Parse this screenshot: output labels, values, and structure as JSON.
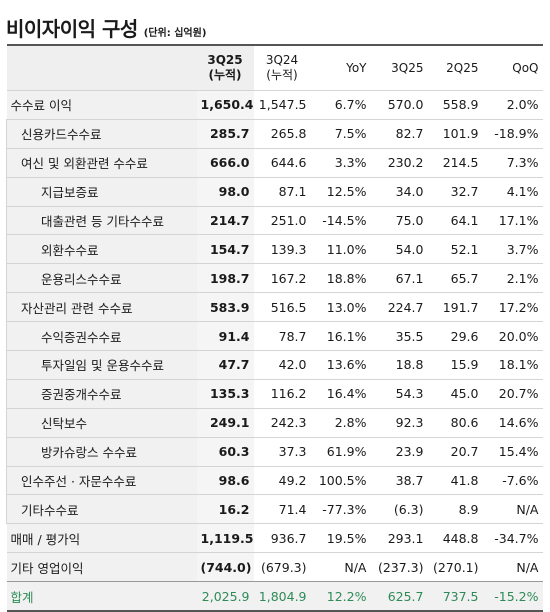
{
  "title": "비이자이익 구성",
  "unit": "(단위: 십억원)",
  "headers": {
    "cur_line1": "3Q25",
    "cur_line2": "(누적)",
    "prev_line1": "3Q24",
    "prev_line2": "(누적)",
    "yoy": "YoY",
    "q3": "3Q25",
    "q2": "2Q25",
    "qoq": "QoQ"
  },
  "rows": [
    {
      "label": "수수료 이익",
      "cur": "1,650.4",
      "prev": "1,547.5",
      "yoy": "6.7%",
      "q3": "570.0",
      "q2": "558.9",
      "qoq": "2.0%"
    },
    {
      "label": "신용카드수수료",
      "cur": "285.7",
      "prev": "265.8",
      "yoy": "7.5%",
      "q3": "82.7",
      "q2": "101.9",
      "qoq": "-18.9%"
    },
    {
      "label": "여신 및 외환관련 수수료",
      "cur": "666.0",
      "prev": "644.6",
      "yoy": "3.3%",
      "q3": "230.2",
      "q2": "214.5",
      "qoq": "7.3%"
    },
    {
      "label": "지급보증료",
      "cur": "98.0",
      "prev": "87.1",
      "yoy": "12.5%",
      "q3": "34.0",
      "q2": "32.7",
      "qoq": "4.1%"
    },
    {
      "label": "대출관련 등 기타수수료",
      "cur": "214.7",
      "prev": "251.0",
      "yoy": "-14.5%",
      "q3": "75.0",
      "q2": "64.1",
      "qoq": "17.1%"
    },
    {
      "label": "외환수수료",
      "cur": "154.7",
      "prev": "139.3",
      "yoy": "11.0%",
      "q3": "54.0",
      "q2": "52.1",
      "qoq": "3.7%"
    },
    {
      "label": "운용리스수수료",
      "cur": "198.7",
      "prev": "167.2",
      "yoy": "18.8%",
      "q3": "67.1",
      "q2": "65.7",
      "qoq": "2.1%"
    },
    {
      "label": "자산관리 관련 수수료",
      "cur": "583.9",
      "prev": "516.5",
      "yoy": "13.0%",
      "q3": "224.7",
      "q2": "191.7",
      "qoq": "17.2%"
    },
    {
      "label": "수익증권수수료",
      "cur": "91.4",
      "prev": "78.7",
      "yoy": "16.1%",
      "q3": "35.5",
      "q2": "29.6",
      "qoq": "20.0%"
    },
    {
      "label": "투자일임 및 운용수수료",
      "cur": "47.7",
      "prev": "42.0",
      "yoy": "13.6%",
      "q3": "18.8",
      "q2": "15.9",
      "qoq": "18.1%"
    },
    {
      "label": "증권중개수수료",
      "cur": "135.3",
      "prev": "116.2",
      "yoy": "16.4%",
      "q3": "54.3",
      "q2": "45.0",
      "qoq": "20.7%"
    },
    {
      "label": "신탁보수",
      "cur": "249.1",
      "prev": "242.3",
      "yoy": "2.8%",
      "q3": "92.3",
      "q2": "80.6",
      "qoq": "14.6%"
    },
    {
      "label": "방카슈랑스 수수료",
      "cur": "60.3",
      "prev": "37.3",
      "yoy": "61.9%",
      "q3": "23.9",
      "q2": "20.7",
      "qoq": "15.4%"
    },
    {
      "label": "인수주선 · 자문수수료",
      "cur": "98.6",
      "prev": "49.2",
      "yoy": "100.5%",
      "q3": "38.7",
      "q2": "41.8",
      "qoq": "-7.6%"
    },
    {
      "label": "기타수수료",
      "cur": "16.2",
      "prev": "71.4",
      "yoy": "-77.3%",
      "q3": "(6.3)",
      "q2": "8.9",
      "qoq": "N/A"
    },
    {
      "label": "매매 / 평가익",
      "cur": "1,119.5",
      "prev": "936.7",
      "yoy": "19.5%",
      "q3": "293.1",
      "q2": "448.8",
      "qoq": "-34.7%"
    },
    {
      "label": "기타 영업이익",
      "cur": "(744.0)",
      "prev": "(679.3)",
      "yoy": "N/A",
      "q3": "(237.3)",
      "q2": "(270.1)",
      "qoq": "N/A"
    },
    {
      "label": "합계",
      "cur": "2,025.9",
      "prev": "1,804.9",
      "yoy": "12.2%",
      "q3": "625.7",
      "q2": "737.5",
      "qoq": "-15.2%"
    }
  ],
  "colors": {
    "total_text": "#2e8b57",
    "label_bg": "#f1f1f1"
  }
}
